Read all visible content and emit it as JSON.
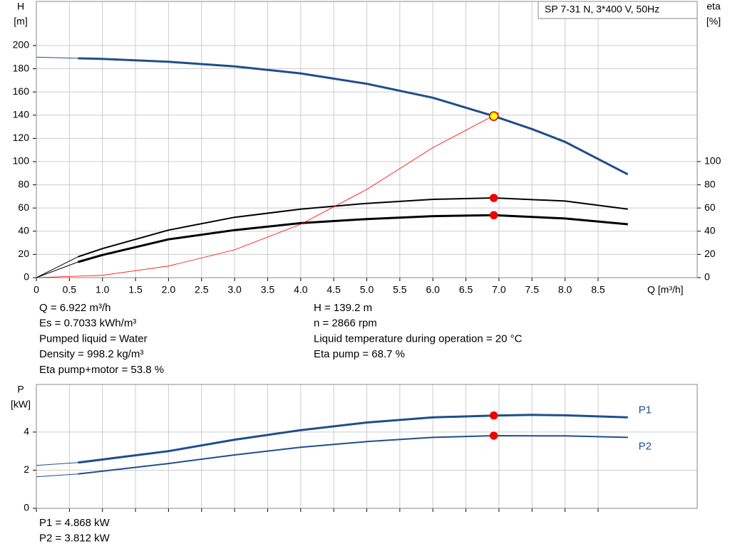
{
  "chart_data": [
    {
      "type": "line",
      "title": "SP 7-31 N, 3*400 V, 50Hz",
      "y_label": "H",
      "y_unit": "[m]",
      "y2_label": "eta",
      "y2_unit": "[%]",
      "x_label": "Q [m³/h]",
      "xlim": [
        0,
        10
      ],
      "ylim": [
        0,
        238
      ],
      "y2lim": [
        0,
        238
      ],
      "xticks": [
        0,
        0.5,
        {
          "value": 1,
          "label": "1.0"
        },
        1.5,
        {
          "value": 2,
          "label": "2.0"
        },
        2.5,
        {
          "value": 3,
          "label": "3.0"
        },
        3.5,
        {
          "value": 4,
          "label": "4.0"
        },
        4.5,
        {
          "value": 5,
          "label": "5.0"
        },
        5.5,
        {
          "value": 6,
          "label": "6.0"
        },
        6.5,
        {
          "value": 7,
          "label": "7.0"
        },
        7.5,
        {
          "value": 8,
          "label": "8.0"
        },
        8.5
      ],
      "yticks": [
        0,
        20,
        40,
        60,
        80,
        100,
        120,
        140,
        160,
        180,
        200
      ],
      "y2ticks": [
        0,
        20,
        40,
        60,
        80,
        100
      ],
      "grid": true,
      "series": [
        {
          "x": [
            0,
            0.63
          ],
          "values": [
            190,
            189
          ],
          "color": "#1f4e8c",
          "width": 1
        },
        {
          "x": [
            0.63,
            1,
            2,
            3,
            4,
            5,
            6,
            6.922,
            7.5,
            8,
            8.95
          ],
          "values": [
            189,
            188.5,
            186,
            182,
            176,
            167,
            155,
            139.2,
            128,
            117,
            89
          ],
          "color": "#1f4e8c",
          "width": 3
        },
        {
          "x": [
            0,
            0.63
          ],
          "values": [
            0,
            18
          ],
          "color": "#000000",
          "width": 1,
          "axis": "y2"
        },
        {
          "x": [
            0.63,
            1,
            2,
            3,
            4,
            5,
            6,
            6.922,
            8,
            8.95
          ],
          "values": [
            18,
            25,
            41,
            52,
            59,
            64,
            67.5,
            68.7,
            66,
            59
          ],
          "color": "#000000",
          "width": 2,
          "axis": "y2"
        },
        {
          "x": [
            0,
            0.63
          ],
          "values": [
            0,
            13.5
          ],
          "color": "#000000",
          "width": 1,
          "axis": "y2"
        },
        {
          "x": [
            0.63,
            1,
            2,
            3,
            4,
            5,
            6,
            6.922,
            8,
            8.95
          ],
          "values": [
            13.5,
            19.5,
            33,
            41,
            47,
            50.5,
            53,
            53.8,
            51,
            46
          ],
          "color": "#000000",
          "width": 3,
          "axis": "y2"
        },
        {
          "x": [
            0,
            1,
            2,
            3,
            4,
            5,
            6,
            7
          ],
          "values": [
            0,
            2,
            10,
            24,
            46,
            76,
            112,
            142
          ],
          "color": "#ff0000",
          "width": 0.8
        },
        {
          "x": [
            6.922
          ],
          "values": [
            139.2
          ],
          "color": "#ffff00",
          "edge": "#cc0000",
          "marker": true
        },
        {
          "x": [
            6.922
          ],
          "values": [
            68.7
          ],
          "color": "#ee0000",
          "edge": "#ee0000",
          "marker": true,
          "axis": "y2"
        },
        {
          "x": [
            6.922
          ],
          "values": [
            53.8
          ],
          "color": "#ee0000",
          "edge": "#ee0000",
          "marker": true,
          "axis": "y2"
        }
      ]
    },
    {
      "type": "line",
      "y_label": "P",
      "y_unit": "[kW]",
      "xlim": [
        0,
        10
      ],
      "ylim": [
        0,
        6.5
      ],
      "xticks": [
        0,
        0.5,
        1,
        1.5,
        2,
        2.5,
        3,
        3.5,
        4,
        4.5,
        5,
        5.5,
        6,
        6.5,
        7,
        7.5,
        8,
        8.5
      ],
      "xtick_labels": false,
      "yticks": [
        0,
        2,
        4
      ],
      "grid": true,
      "series": [
        {
          "x": [
            0,
            0.63
          ],
          "values": [
            2.25,
            2.4
          ],
          "color": "#1f4e8c",
          "width": 1
        },
        {
          "name": "P1",
          "x": [
            0.63,
            2,
            3,
            4,
            5,
            6,
            6.922,
            7.5,
            8,
            8.95
          ],
          "values": [
            2.4,
            3.0,
            3.6,
            4.1,
            4.5,
            4.77,
            4.868,
            4.9,
            4.88,
            4.77
          ],
          "color": "#1f4e8c",
          "width": 3
        },
        {
          "x": [
            0,
            0.63
          ],
          "values": [
            1.65,
            1.8
          ],
          "color": "#1f4e8c",
          "width": 1
        },
        {
          "name": "P2",
          "x": [
            0.63,
            2,
            3,
            4,
            5,
            6,
            6.922,
            8,
            8.95
          ],
          "values": [
            1.8,
            2.35,
            2.8,
            3.2,
            3.5,
            3.72,
            3.812,
            3.8,
            3.72
          ],
          "color": "#1f4e8c",
          "width": 2
        },
        {
          "x": [
            6.922
          ],
          "values": [
            4.868
          ],
          "color": "#ee0000",
          "edge": "#ee0000",
          "marker": true
        },
        {
          "x": [
            6.922
          ],
          "values": [
            3.812
          ],
          "color": "#ee0000",
          "edge": "#ee0000",
          "marker": true
        }
      ]
    }
  ],
  "info": {
    "left": [
      "Q = 6.922 m³/h",
      "Es = 0.7033 kWh/m³",
      "Pumped liquid = Water",
      "Density = 998.2 kg/m³",
      "Eta pump+motor = 53.8 %"
    ],
    "right": [
      "H = 139.2 m",
      "n = 2866 rpm",
      "Liquid temperature during operation = 20 °C",
      "Eta pump = 68.7 %"
    ],
    "power": [
      "P1 = 4.868 kW",
      "P2 = 3.812 kW"
    ]
  }
}
